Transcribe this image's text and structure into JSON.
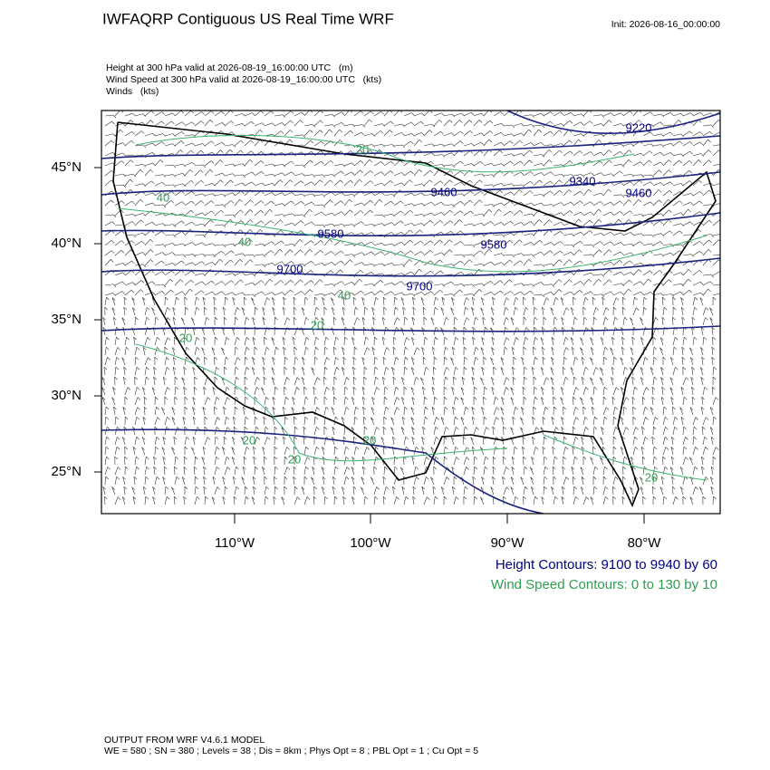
{
  "header": {
    "title": "IWFAQRP Contiguous US Real Time WRF",
    "init": "Init: 2026-08-16_00:00:00",
    "fields": [
      "Height at 300 hPa valid at 2026-08-19_16:00:00 UTC   (m)",
      "Wind Speed at 300 hPa valid at 2026-08-19_16:00:00 UTC   (kts)",
      "Winds   (kts)"
    ]
  },
  "map": {
    "lat_labels": [
      "45°N",
      "40°N",
      "35°N",
      "30°N",
      "25°N"
    ],
    "lon_labels": [
      "110°W",
      "100°W",
      "90°W",
      "80°W"
    ],
    "height_labels": [
      "9220",
      "9340",
      "9460",
      "9460",
      "9580",
      "9580",
      "9700",
      "9700"
    ],
    "speed_labels": [
      "20",
      "40",
      "40",
      "20",
      "40",
      "20",
      "20",
      "20",
      "20",
      "20"
    ]
  },
  "legend": {
    "height": "Height Contours: 9100 to 9940 by 60",
    "speed": "Wind Speed Contours: 0 to 130 by 10"
  },
  "footer": {
    "model": "OUTPUT FROM WRF V4.6.1 MODEL",
    "settings": "WE = 580 ; SN = 380 ; Levels = 38 ; Dis = 8km ; Phys Opt = 8 ; PBL Opt = 1 ; Cu Opt = 5"
  }
}
